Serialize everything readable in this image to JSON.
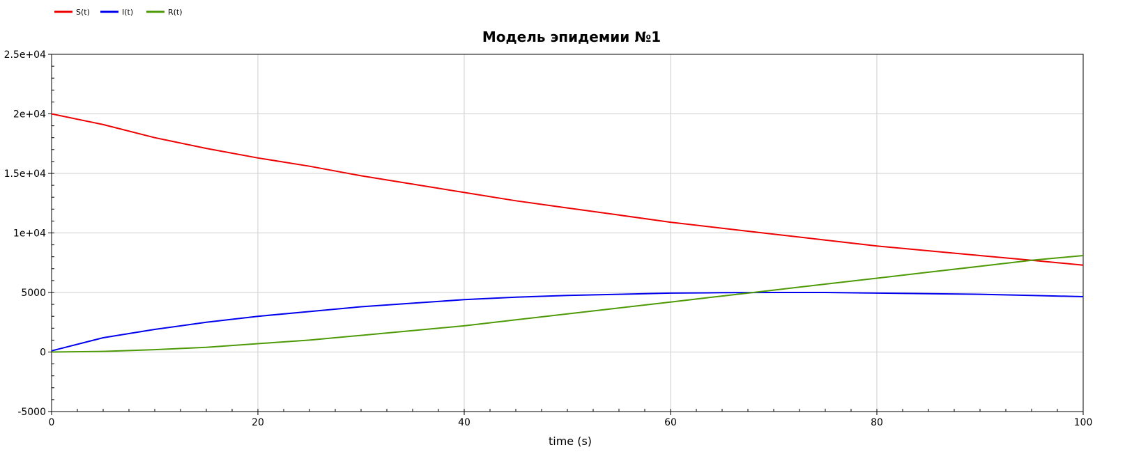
{
  "chart_data": {
    "type": "line",
    "title": "Модель эпидемии №1",
    "xlabel": "time (s)",
    "ylabel": "",
    "xlim": [
      0,
      100
    ],
    "ylim": [
      -5000,
      25000
    ],
    "grid": true,
    "legend_position": "top-left",
    "x_ticks": [
      0,
      20,
      40,
      60,
      80,
      100
    ],
    "x_tick_labels": [
      "0",
      "20",
      "40",
      "60",
      "80",
      "100"
    ],
    "y_ticks": [
      -5000,
      0,
      5000,
      10000,
      15000,
      20000,
      25000
    ],
    "y_tick_labels": [
      "-5000",
      "0",
      "5000",
      "1e+04",
      "1.5e+04",
      "2e+04",
      "2.5e+04"
    ],
    "x": [
      0,
      5,
      10,
      15,
      20,
      25,
      30,
      35,
      40,
      45,
      50,
      55,
      60,
      65,
      70,
      75,
      80,
      85,
      90,
      95,
      100
    ],
    "series": [
      {
        "name": "S(t)",
        "color": "#ee0000",
        "values": [
          20000,
          19100,
          18000,
          17100,
          16300,
          15600,
          14800,
          14100,
          13400,
          12700,
          12100,
          11500,
          10900,
          10400,
          9900,
          9400,
          8900,
          8500,
          8100,
          7700,
          7300
        ]
      },
      {
        "name": "I(t)",
        "color": "#0000ee",
        "values": [
          100,
          1200,
          1900,
          2500,
          3000,
          3400,
          3800,
          4100,
          4400,
          4600,
          4750,
          4850,
          4950,
          4980,
          5000,
          5000,
          4950,
          4900,
          4850,
          4750,
          4650
        ]
      },
      {
        "name": "R(t)",
        "color": "#4e9a06",
        "values": [
          0,
          50,
          200,
          400,
          700,
          1000,
          1400,
          1800,
          2200,
          2700,
          3200,
          3700,
          4200,
          4700,
          5200,
          5700,
          6200,
          6700,
          7200,
          7700,
          8100
        ]
      }
    ]
  }
}
